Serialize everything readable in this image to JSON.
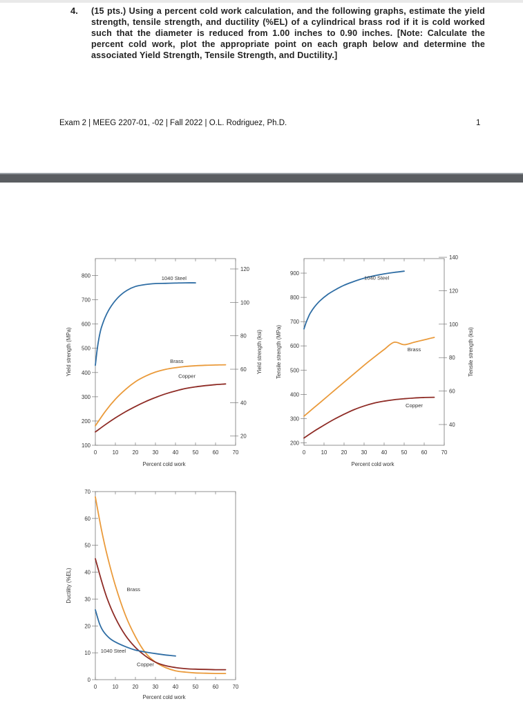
{
  "question": {
    "number": "4.",
    "text": "(15 pts.) Using a percent cold work calculation, and the following graphs, estimate the yield strength, tensile strength, and ductility (%EL) of a cylindrical brass rod if it is cold worked such that the diameter is reduced from 1.00 inches to 0.90 inches. [Note: Calculate the percent cold work, plot the appropriate point on each graph below and determine the associated Yield Strength, Tensile Strength, and Ductility.]"
  },
  "footer": {
    "text": "Exam 2 | MEEG 2207-01, -02 | Fall 2022 | O.L. Rodriguez, Ph.D.",
    "page_number": "1"
  },
  "colors": {
    "steel": "#2e6da4",
    "brass": "#ea9a3a",
    "copper": "#8e2b25",
    "axis": "#777777",
    "divider": "#5a5d61"
  },
  "chart_data": [
    {
      "type": "line",
      "xlabel": "Percent cold work",
      "ylabel": "Yield strength (MPa)",
      "y2label": "Yield strength (ksi)",
      "xlim": [
        0,
        70
      ],
      "ylim": [
        100,
        870
      ],
      "y2lim": [
        14.5,
        126.2
      ],
      "xticks": [
        0,
        10,
        20,
        30,
        40,
        50,
        60,
        70
      ],
      "yticks": [
        100,
        200,
        300,
        400,
        500,
        600,
        700,
        800
      ],
      "y2ticks": [
        20,
        40,
        60,
        80,
        100,
        120
      ],
      "series": [
        {
          "name": "1040 Steel",
          "color": "#2e6da4",
          "x": [
            0,
            1,
            2,
            3,
            5,
            8,
            12,
            16,
            20,
            25,
            30,
            35,
            40,
            45,
            50
          ],
          "values": [
            430,
            500,
            550,
            585,
            630,
            675,
            715,
            740,
            755,
            763,
            767,
            768,
            769,
            770,
            770
          ]
        },
        {
          "name": "Brass",
          "color": "#ea9a3a",
          "x": [
            0,
            5,
            10,
            15,
            20,
            25,
            30,
            35,
            40,
            45,
            50,
            55,
            60,
            65
          ],
          "values": [
            180,
            240,
            290,
            330,
            362,
            385,
            402,
            413,
            420,
            425,
            428,
            430,
            431,
            432
          ]
        },
        {
          "name": "Copper",
          "color": "#8e2b25",
          "x": [
            0,
            5,
            10,
            15,
            20,
            25,
            30,
            35,
            40,
            45,
            50,
            55,
            60,
            65
          ],
          "values": [
            155,
            185,
            213,
            238,
            260,
            280,
            297,
            312,
            324,
            334,
            341,
            346,
            350,
            353
          ]
        }
      ]
    },
    {
      "type": "line",
      "xlabel": "Percent cold work",
      "ylabel": "Tensile strength (MPa)",
      "y2label": "Tensile strength (ksi)",
      "xlim": [
        0,
        70
      ],
      "ylim": [
        190,
        960
      ],
      "y2lim": [
        27.6,
        139.2
      ],
      "xticks": [
        0,
        10,
        20,
        30,
        40,
        50,
        60,
        70
      ],
      "yticks": [
        200,
        300,
        400,
        500,
        600,
        700,
        800,
        900
      ],
      "y2ticks": [
        40,
        60,
        80,
        100,
        120,
        140
      ],
      "series": [
        {
          "name": "1040 Steel",
          "color": "#2e6da4",
          "x": [
            0,
            1,
            2,
            3,
            5,
            8,
            12,
            16,
            20,
            25,
            30,
            35,
            40,
            45,
            50
          ],
          "values": [
            670,
            695,
            715,
            733,
            758,
            786,
            813,
            833,
            850,
            866,
            879,
            889,
            897,
            903,
            908
          ]
        },
        {
          "name": "Brass",
          "color": "#ea9a3a",
          "x": [
            0,
            5,
            10,
            15,
            20,
            25,
            30,
            35,
            40,
            45,
            50,
            55,
            60,
            65
          ],
          "values": [
            310,
            345,
            380,
            415,
            450,
            485,
            520,
            553,
            585,
            615,
            605,
            615,
            625,
            635
          ]
        },
        {
          "name": "Copper",
          "color": "#8e2b25",
          "x": [
            0,
            5,
            10,
            15,
            20,
            25,
            30,
            35,
            40,
            45,
            50,
            55,
            60,
            65
          ],
          "values": [
            220,
            248,
            273,
            297,
            318,
            337,
            352,
            364,
            372,
            378,
            382,
            385,
            387,
            388
          ]
        }
      ]
    },
    {
      "type": "line",
      "xlabel": "Percent cold work",
      "ylabel": "Ductility (%EL)",
      "xlim": [
        0,
        70
      ],
      "ylim": [
        0,
        70
      ],
      "xticks": [
        0,
        10,
        20,
        30,
        40,
        50,
        60,
        70
      ],
      "yticks": [
        0,
        10,
        20,
        30,
        40,
        50,
        60,
        70
      ],
      "series": [
        {
          "name": "Brass",
          "color": "#ea9a3a",
          "x": [
            0,
            3,
            6,
            10,
            15,
            20,
            25,
            30,
            35,
            40,
            45,
            50,
            55,
            60,
            65
          ],
          "values": [
            68,
            56,
            46,
            35,
            24,
            16,
            10,
            6.5,
            4.5,
            3.3,
            2.8,
            2.5,
            2.4,
            2.3,
            2.3
          ]
        },
        {
          "name": "Copper",
          "color": "#8e2b25",
          "x": [
            0,
            3,
            6,
            10,
            15,
            20,
            25,
            30,
            35,
            40,
            45,
            50,
            55,
            60,
            65
          ],
          "values": [
            45,
            37,
            30,
            23,
            16.5,
            12,
            8.8,
            6.5,
            5.2,
            4.5,
            4.1,
            3.9,
            3.8,
            3.7,
            3.7
          ]
        },
        {
          "name": "1040 Steel",
          "color": "#2e6da4",
          "x": [
            0,
            2,
            4,
            7,
            10,
            15,
            20,
            25,
            30,
            35,
            40
          ],
          "values": [
            26,
            21,
            18,
            15.5,
            14,
            12.3,
            11,
            10.3,
            9.7,
            9.2,
            8.8
          ]
        }
      ]
    }
  ]
}
